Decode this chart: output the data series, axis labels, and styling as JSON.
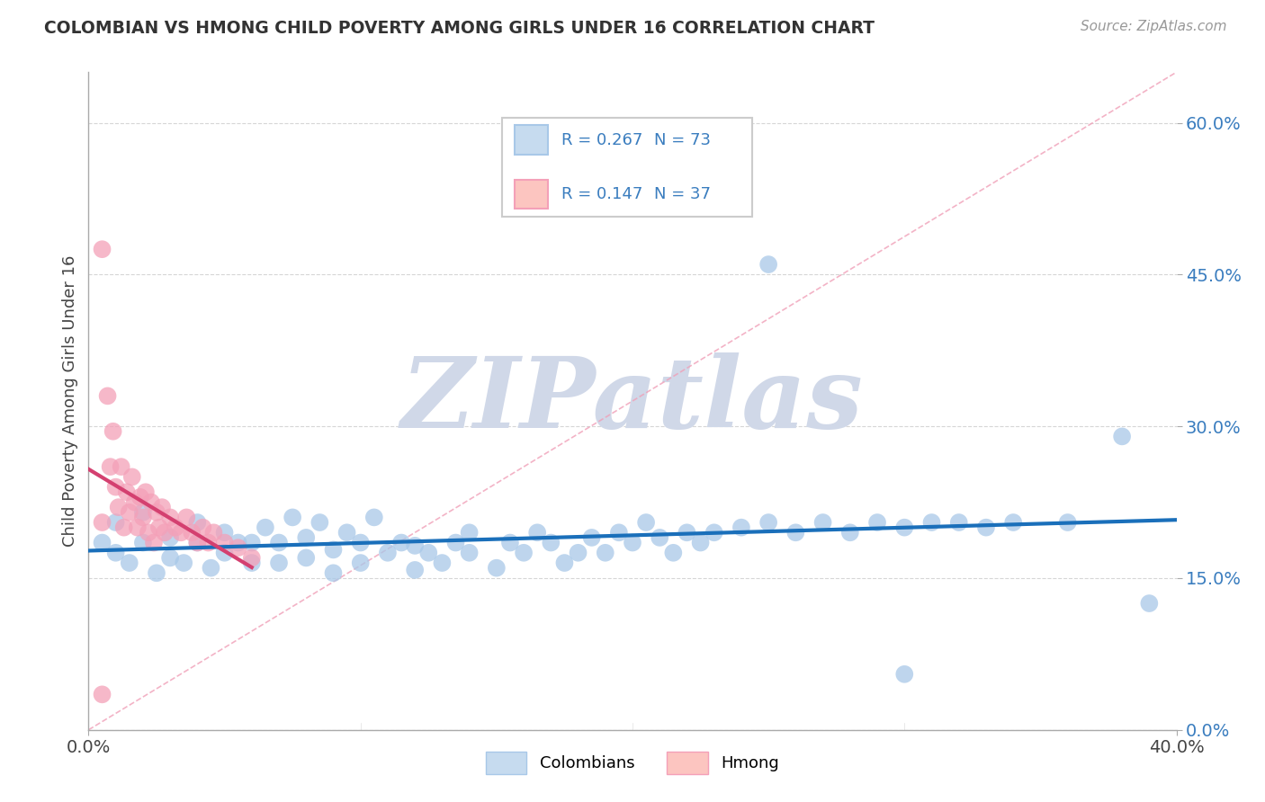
{
  "title": "COLOMBIAN VS HMONG CHILD POVERTY AMONG GIRLS UNDER 16 CORRELATION CHART",
  "source": "Source: ZipAtlas.com",
  "ylabel": "Child Poverty Among Girls Under 16",
  "xlim": [
    0.0,
    0.4
  ],
  "ylim": [
    0.0,
    0.65
  ],
  "yticks": [
    0.0,
    0.15,
    0.3,
    0.45,
    0.6
  ],
  "ytick_labels": [
    "0.0%",
    "15.0%",
    "30.0%",
    "45.0%",
    "60.0%"
  ],
  "xtick_labels": [
    "0.0%",
    "40.0%"
  ],
  "legend_r1": "0.267",
  "legend_n1": "73",
  "legend_r2": "0.147",
  "legend_n2": "37",
  "blue_dot": "#a8c8e8",
  "pink_dot": "#f4a0b8",
  "blue_fill": "#c6dbef",
  "pink_fill": "#fcc5c0",
  "trend_blue": "#1a6fba",
  "trend_pink": "#d44070",
  "diagonal_color": "#f0a0b8",
  "watermark_color": "#d0d8e8",
  "background_color": "#ffffff",
  "grid_color": "#cccccc",
  "colombians_x": [
    0.005,
    0.01,
    0.01,
    0.015,
    0.02,
    0.02,
    0.025,
    0.03,
    0.03,
    0.035,
    0.04,
    0.04,
    0.045,
    0.05,
    0.05,
    0.055,
    0.06,
    0.06,
    0.065,
    0.07,
    0.07,
    0.075,
    0.08,
    0.08,
    0.085,
    0.09,
    0.09,
    0.095,
    0.1,
    0.1,
    0.105,
    0.11,
    0.115,
    0.12,
    0.12,
    0.125,
    0.13,
    0.135,
    0.14,
    0.14,
    0.15,
    0.155,
    0.16,
    0.165,
    0.17,
    0.175,
    0.18,
    0.185,
    0.19,
    0.195,
    0.2,
    0.205,
    0.21,
    0.215,
    0.22,
    0.225,
    0.23,
    0.24,
    0.25,
    0.26,
    0.27,
    0.28,
    0.29,
    0.3,
    0.31,
    0.32,
    0.33,
    0.34,
    0.36,
    0.38,
    0.39,
    0.25,
    0.3
  ],
  "colombians_y": [
    0.185,
    0.175,
    0.205,
    0.165,
    0.185,
    0.215,
    0.155,
    0.17,
    0.19,
    0.165,
    0.185,
    0.205,
    0.16,
    0.175,
    0.195,
    0.185,
    0.165,
    0.185,
    0.2,
    0.165,
    0.185,
    0.21,
    0.17,
    0.19,
    0.205,
    0.155,
    0.178,
    0.195,
    0.165,
    0.185,
    0.21,
    0.175,
    0.185,
    0.158,
    0.182,
    0.175,
    0.165,
    0.185,
    0.175,
    0.195,
    0.16,
    0.185,
    0.175,
    0.195,
    0.185,
    0.165,
    0.175,
    0.19,
    0.175,
    0.195,
    0.185,
    0.205,
    0.19,
    0.175,
    0.195,
    0.185,
    0.195,
    0.2,
    0.205,
    0.195,
    0.205,
    0.195,
    0.205,
    0.2,
    0.205,
    0.205,
    0.2,
    0.205,
    0.205,
    0.29,
    0.125,
    0.46,
    0.055
  ],
  "hmong_x": [
    0.005,
    0.005,
    0.007,
    0.008,
    0.009,
    0.01,
    0.011,
    0.012,
    0.013,
    0.014,
    0.015,
    0.016,
    0.017,
    0.018,
    0.019,
    0.02,
    0.021,
    0.022,
    0.023,
    0.024,
    0.025,
    0.026,
    0.027,
    0.028,
    0.03,
    0.032,
    0.034,
    0.036,
    0.038,
    0.04,
    0.042,
    0.044,
    0.046,
    0.05,
    0.055,
    0.06,
    0.005
  ],
  "hmong_y": [
    0.475,
    0.035,
    0.33,
    0.26,
    0.295,
    0.24,
    0.22,
    0.26,
    0.2,
    0.235,
    0.215,
    0.25,
    0.225,
    0.2,
    0.23,
    0.21,
    0.235,
    0.195,
    0.225,
    0.185,
    0.215,
    0.2,
    0.22,
    0.195,
    0.21,
    0.2,
    0.195,
    0.21,
    0.195,
    0.185,
    0.2,
    0.185,
    0.195,
    0.185,
    0.18,
    0.17,
    0.205
  ]
}
